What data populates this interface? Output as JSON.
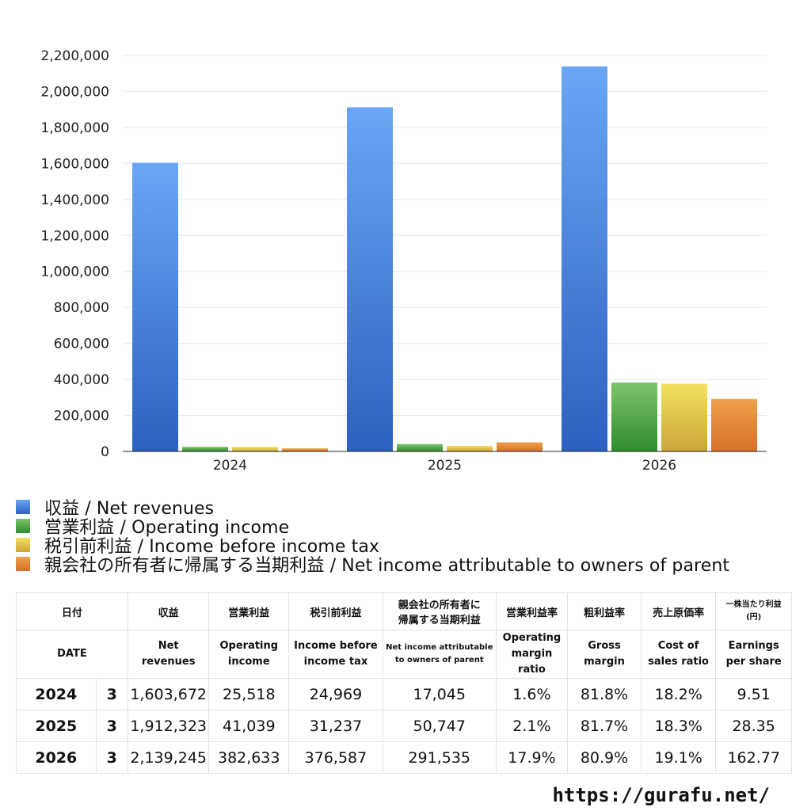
{
  "chart_data": {
    "type": "bar",
    "categories": [
      "2024",
      "2025",
      "2026"
    ],
    "ylim": [
      0,
      2200000
    ],
    "yticks": [
      0,
      200000,
      400000,
      600000,
      800000,
      1000000,
      1200000,
      1400000,
      1600000,
      1800000,
      2000000,
      2200000
    ],
    "ytick_labels": [
      "0",
      "200,000",
      "400,000",
      "600,000",
      "800,000",
      "1,000,000",
      "1,200,000",
      "1,400,000",
      "1,600,000",
      "1,800,000",
      "2,000,000",
      "2,200,000"
    ],
    "grid": true,
    "legend_position": "bottom",
    "series": [
      {
        "name": "収益 / Net revenues",
        "values": [
          1603672,
          1912323,
          2139245
        ],
        "color_top": "#69a7f5",
        "color_bottom": "#2d60c0"
      },
      {
        "name": "営業利益 / Operating income",
        "values": [
          25518,
          41039,
          382633
        ],
        "color_top": "#7dc46b",
        "color_bottom": "#2f8a2e"
      },
      {
        "name": "税引前利益 / Income before income tax",
        "values": [
          24969,
          31237,
          376587
        ],
        "color_top": "#f6e15e",
        "color_bottom": "#c9a53a"
      },
      {
        "name": "親会社の所有者に帰属する当期利益 / Net income attributable to owners of parent",
        "values": [
          17045,
          50747,
          291535
        ],
        "color_top": "#eea24c",
        "color_bottom": "#d76f2a"
      }
    ]
  },
  "legend": {
    "items": [
      {
        "label": "収益 / Net revenues",
        "color": "#4a8ae6"
      },
      {
        "label": "営業利益 / Operating income",
        "color": "#5aa84a"
      },
      {
        "label": "税引前利益 / Income before income tax",
        "color": "#e0c64b"
      },
      {
        "label": "親会社の所有者に帰属する当期利益 / Net income attributable to owners of parent",
        "color": "#e6883a"
      }
    ]
  },
  "table": {
    "header_jp": {
      "date": "日付",
      "revenue": "収益",
      "operating": "営業利益",
      "pretax": "税引前利益",
      "net1": "親会社の所有者に",
      "net2": "帰属する当期利益",
      "op_margin": "営業利益率",
      "gross_margin": "粗利益率",
      "cost_ratio": "売上原価率",
      "eps1": "一株当たり利益",
      "eps2": "(円)"
    },
    "header_en": {
      "date": "DATE",
      "revenue": "Net revenues",
      "operating1": "Operating",
      "operating2": "income",
      "pretax1": "Income before",
      "pretax2": "income tax",
      "net1": "Net income attributable",
      "net2": "to owners of parent",
      "op_margin1": "Operating",
      "op_margin2": "margin",
      "op_margin3": "ratio",
      "gross1": "Gross",
      "gross2": "margin",
      "cost1": "Cost of",
      "cost2": "sales ratio",
      "eps1": "Earnings",
      "eps2": "per share"
    },
    "rows": [
      {
        "year": "2024",
        "month": "3",
        "revenue": "1,603,672",
        "operating": "25,518",
        "pretax": "24,969",
        "net": "17,045",
        "op_margin": "1.6%",
        "gross_margin": "81.8%",
        "cost_ratio": "18.2%",
        "eps": "9.51"
      },
      {
        "year": "2025",
        "month": "3",
        "revenue": "1,912,323",
        "operating": "41,039",
        "pretax": "31,237",
        "net": "50,747",
        "op_margin": "2.1%",
        "gross_margin": "81.7%",
        "cost_ratio": "18.3%",
        "eps": "28.35"
      },
      {
        "year": "2026",
        "month": "3",
        "revenue": "2,139,245",
        "operating": "382,633",
        "pretax": "376,587",
        "net": "291,535",
        "op_margin": "17.9%",
        "gross_margin": "80.9%",
        "cost_ratio": "19.1%",
        "eps": "162.77"
      }
    ]
  },
  "footer": {
    "url": "https://gurafu.net/"
  }
}
